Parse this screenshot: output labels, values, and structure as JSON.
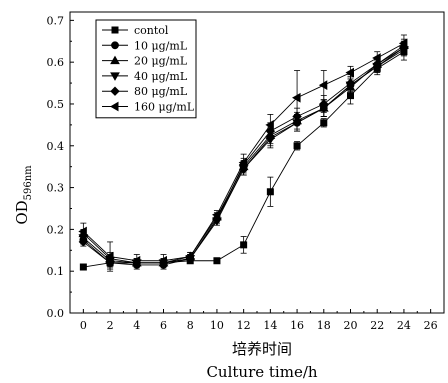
{
  "chart_data": {
    "type": "line",
    "xlabel_cn": "培养时间",
    "xlabel": "Culture time/h",
    "ylabel_main": "OD",
    "ylabel_sub": "596nm",
    "xlim": [
      -1,
      27
    ],
    "ylim": [
      0.0,
      0.72
    ],
    "xticks": [
      "0",
      "2",
      "4",
      "6",
      "8",
      "10",
      "12",
      "14",
      "16",
      "18",
      "20",
      "22",
      "24",
      "26"
    ],
    "yticks": [
      "0.0",
      "0.1",
      "0.2",
      "0.3",
      "0.4",
      "0.5",
      "0.6",
      "0.7"
    ],
    "legend_position": "top-left",
    "x": [
      0,
      2,
      4,
      6,
      8,
      10,
      12,
      14,
      16,
      18,
      20,
      22,
      24
    ],
    "series": [
      {
        "name": "contol",
        "marker": "square",
        "values": [
          0.11,
          0.12,
          0.12,
          0.12,
          0.125,
          0.125,
          0.163,
          0.29,
          0.4,
          0.455,
          0.52,
          0.585,
          0.625
        ],
        "errors": [
          0.005,
          0.01,
          0.01,
          0.01,
          0.005,
          0.005,
          0.02,
          0.035,
          0.01,
          0.01,
          0.02,
          0.015,
          0.02
        ]
      },
      {
        "name": "10 μg/mL",
        "marker": "circle",
        "values": [
          0.175,
          0.12,
          0.115,
          0.115,
          0.13,
          0.225,
          0.345,
          0.42,
          0.455,
          0.49,
          0.545,
          0.59,
          0.635
        ],
        "errors": [
          0.01,
          0.015,
          0.01,
          0.01,
          0.01,
          0.01,
          0.015,
          0.02,
          0.02,
          0.02,
          0.02,
          0.015,
          0.015
        ]
      },
      {
        "name": "20 μg/mL",
        "marker": "triangle-up",
        "values": [
          0.19,
          0.13,
          0.12,
          0.12,
          0.135,
          0.23,
          0.35,
          0.425,
          0.46,
          0.49,
          0.54,
          0.595,
          0.64
        ],
        "errors": [
          0.01,
          0.015,
          0.01,
          0.01,
          0.01,
          0.01,
          0.015,
          0.02,
          0.02,
          0.02,
          0.02,
          0.015,
          0.015
        ]
      },
      {
        "name": "40 μg/mL",
        "marker": "triangle-down",
        "values": [
          0.18,
          0.125,
          0.12,
          0.12,
          0.13,
          0.22,
          0.345,
          0.415,
          0.455,
          0.49,
          0.545,
          0.59,
          0.63
        ],
        "errors": [
          0.01,
          0.015,
          0.01,
          0.01,
          0.01,
          0.01,
          0.015,
          0.02,
          0.02,
          0.02,
          0.02,
          0.015,
          0.015
        ]
      },
      {
        "name": "80 μg/mL",
        "marker": "diamond",
        "values": [
          0.17,
          0.12,
          0.12,
          0.12,
          0.13,
          0.225,
          0.355,
          0.435,
          0.47,
          0.5,
          0.55,
          0.595,
          0.635
        ],
        "errors": [
          0.01,
          0.015,
          0.01,
          0.01,
          0.01,
          0.01,
          0.015,
          0.02,
          0.02,
          0.02,
          0.02,
          0.015,
          0.015
        ]
      },
      {
        "name": "160 μg/mL",
        "marker": "triangle-left",
        "values": [
          0.195,
          0.135,
          0.125,
          0.125,
          0.135,
          0.235,
          0.36,
          0.45,
          0.515,
          0.545,
          0.575,
          0.61,
          0.645
        ],
        "errors": [
          0.02,
          0.035,
          0.015,
          0.015,
          0.01,
          0.01,
          0.02,
          0.025,
          0.065,
          0.035,
          0.015,
          0.015,
          0.02
        ]
      }
    ]
  }
}
